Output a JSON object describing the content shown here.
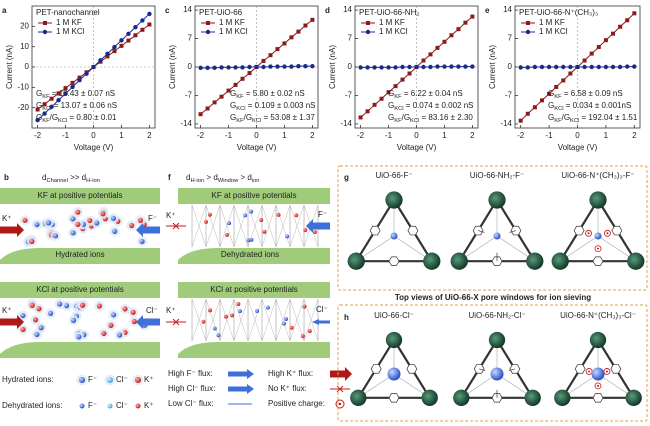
{
  "chart_data": [
    {
      "type": "line",
      "panel": "a",
      "title": "PET-nanochannel",
      "xlabel": "Voltage (V)",
      "ylabel": "Current (nA)",
      "x": [
        -2,
        -1.75,
        -1.5,
        -1.25,
        -1,
        -0.75,
        -0.5,
        -0.25,
        0,
        0.25,
        0.5,
        0.75,
        1,
        1.25,
        1.5,
        1.75,
        2
      ],
      "xlim": [
        -2.2,
        2.2
      ],
      "xticks": [
        -2,
        -1,
        0,
        1,
        2
      ],
      "ylim": [
        -30,
        30
      ],
      "yticks": [
        -20,
        -10,
        0,
        10,
        20
      ],
      "series": [
        {
          "name": "1 M KF",
          "color": "#8b1a1a",
          "marker": "square",
          "values": [
            -20.9,
            -18.3,
            -15.6,
            -13.0,
            -10.4,
            -7.8,
            -5.2,
            -2.6,
            0,
            2.6,
            5.2,
            7.8,
            10.4,
            13.0,
            15.6,
            18.3,
            20.9
          ]
        },
        {
          "name": "1 M KCl",
          "color": "#1a2a8b",
          "marker": "circle",
          "values": [
            -26.1,
            -22.9,
            -19.6,
            -16.3,
            -13.1,
            -9.8,
            -6.5,
            -3.3,
            0,
            3.3,
            6.5,
            9.8,
            13.1,
            16.3,
            19.6,
            22.9,
            26.1
          ]
        }
      ],
      "annotations": [
        [
          "G",
          "KF",
          " = 10.43 ± 0.07 nS"
        ],
        [
          "G",
          "KCl",
          " = 13.07 ± 0.06 nS"
        ],
        [
          "G",
          "KF",
          "/G",
          "KCl",
          " = 0.80 ± 0.01"
        ]
      ]
    },
    {
      "type": "line",
      "panel": "c",
      "title": "PET-UiO-66",
      "xlabel": "Voltage (V)",
      "ylabel": "Current (nA)",
      "x": [
        -2,
        -1.75,
        -1.5,
        -1.25,
        -1,
        -0.75,
        -0.5,
        -0.25,
        0,
        0.25,
        0.5,
        0.75,
        1,
        1.25,
        1.5,
        1.75,
        2
      ],
      "xlim": [
        -2.2,
        2.2
      ],
      "xticks": [
        -2,
        -1,
        0,
        1,
        2
      ],
      "ylim": [
        -15,
        15
      ],
      "yticks": [
        -14,
        -7,
        0,
        7,
        14
      ],
      "series": [
        {
          "name": "1 M KF",
          "color": "#8b1a1a",
          "marker": "square",
          "values": [
            -11.6,
            -10.2,
            -8.7,
            -7.3,
            -5.8,
            -4.4,
            -2.9,
            -1.5,
            0,
            1.5,
            2.9,
            4.4,
            5.8,
            7.3,
            8.7,
            10.2,
            11.6
          ]
        },
        {
          "name": "1 M KCl",
          "color": "#1a2a8b",
          "marker": "circle",
          "values": [
            -0.2,
            -0.2,
            -0.2,
            -0.1,
            -0.1,
            -0.1,
            -0.1,
            0,
            0,
            0,
            0.1,
            0.1,
            0.1,
            0.1,
            0.2,
            0.2,
            0.2
          ]
        }
      ],
      "annotations": [
        [
          "G",
          "KF",
          " = 5.80 ± 0.02 nS"
        ],
        [
          "G",
          "KCl",
          " = 0.109 ± 0.003 nS"
        ],
        [
          "G",
          "KF",
          "/G",
          "KCl",
          " = 53.08 ± 1.37"
        ]
      ]
    },
    {
      "type": "line",
      "panel": "d",
      "title": "PET-UiO-66-NH₂",
      "xlabel": "Voltage (V)",
      "ylabel": "Current (nA)",
      "x": [
        -2,
        -1.75,
        -1.5,
        -1.25,
        -1,
        -0.75,
        -0.5,
        -0.25,
        0,
        0.25,
        0.5,
        0.75,
        1,
        1.25,
        1.5,
        1.75,
        2
      ],
      "xlim": [
        -2.2,
        2.2
      ],
      "xticks": [
        -2,
        -1,
        0,
        1,
        2
      ],
      "ylim": [
        -15,
        15
      ],
      "yticks": [
        -14,
        -7,
        0,
        7,
        14
      ],
      "series": [
        {
          "name": "1 M KF",
          "color": "#8b1a1a",
          "marker": "square",
          "values": [
            -12.4,
            -10.9,
            -9.3,
            -7.8,
            -6.2,
            -4.7,
            -3.1,
            -1.6,
            0,
            1.6,
            3.1,
            4.7,
            6.2,
            7.8,
            9.3,
            10.9,
            12.4
          ]
        },
        {
          "name": "1 M KCl",
          "color": "#1a2a8b",
          "marker": "circle",
          "values": [
            -0.1,
            -0.1,
            -0.1,
            -0.1,
            -0.1,
            -0.1,
            0,
            0,
            0,
            0,
            0,
            0.1,
            0.1,
            0.1,
            0.1,
            0.1,
            0.1
          ]
        }
      ],
      "annotations": [
        [
          "G",
          "KF",
          " = 6.22 ± 0.04 nS"
        ],
        [
          "G",
          "KCl",
          " = 0.074 ± 0.002 nS"
        ],
        [
          "G",
          "KF",
          "/G",
          "KCl",
          " = 83.16 ± 2.30"
        ]
      ]
    },
    {
      "type": "line",
      "panel": "e",
      "title": "PET-UiO-66-N⁺(CH₃)₃",
      "xlabel": "Voltage (V)",
      "ylabel": "Current (nA)",
      "x": [
        -2,
        -1.75,
        -1.5,
        -1.25,
        -1,
        -0.75,
        -0.5,
        -0.25,
        0,
        0.25,
        0.5,
        0.75,
        1,
        1.25,
        1.5,
        1.75,
        2
      ],
      "xlim": [
        -2.2,
        2.2
      ],
      "xticks": [
        -2,
        -1,
        0,
        1,
        2
      ],
      "ylim": [
        -15,
        15
      ],
      "yticks": [
        -14,
        -7,
        0,
        7,
        14
      ],
      "series": [
        {
          "name": "1 M KF",
          "color": "#8b1a1a",
          "marker": "square",
          "values": [
            -13.2,
            -11.5,
            -9.9,
            -8.2,
            -6.6,
            -4.9,
            -3.3,
            -1.6,
            0,
            1.6,
            3.3,
            4.9,
            6.6,
            8.2,
            9.9,
            11.5,
            13.2
          ]
        },
        {
          "name": "1 M KCl",
          "color": "#1a2a8b",
          "marker": "circle",
          "values": [
            -0.1,
            -0.1,
            0,
            0,
            0,
            0,
            0,
            0,
            0,
            0,
            0,
            0,
            0,
            0,
            0,
            0.1,
            0.1
          ]
        }
      ],
      "annotations": [
        [
          "G",
          "KF",
          " = 6.58 ± 0.09 nS"
        ],
        [
          "G",
          "KCl",
          " = 0.034 ± 0.001nS"
        ],
        [
          "G",
          "KF",
          "/G",
          "KCl",
          " = 192.04 ± 1.51"
        ]
      ]
    }
  ],
  "diagram": {
    "b": {
      "label": "b",
      "condition": [
        "d",
        "Channel",
        " >> d",
        "H-ion"
      ],
      "kf": "KF at positive potentials",
      "kcl": "KCl at positive potentials",
      "ions": [
        "K⁺",
        "F⁻",
        "K⁺",
        "Cl⁻"
      ],
      "note": "Hydrated ions"
    },
    "f": {
      "label": "f",
      "condition": [
        "d",
        "H-ion",
        " > d",
        "Window",
        " > d",
        "ion"
      ],
      "kf": "KF at positive potentials",
      "kcl": "KCl at positive potentials",
      "ions": [
        "K⁺",
        "F⁻",
        "K⁺",
        "Cl⁻"
      ],
      "note": "Dehydrated ions"
    },
    "hydrated": {
      "title": "Hydrated ions:",
      "ions": [
        "F⁻",
        "Cl⁻",
        "K⁺"
      ]
    },
    "dehydrated": {
      "title": "Dehydrated ions:",
      "ions": [
        "F⁻",
        "Cl⁻",
        "K⁺"
      ]
    },
    "flux": [
      "High F⁻ flux:",
      "High Cl⁻ flux:",
      "Low Cl⁻ flux:",
      "High K⁺ flux:",
      "No K⁺ flux:",
      "Positive charge:"
    ],
    "g": {
      "label": "g",
      "structures": [
        "UiO-66-F⁻",
        "UiO-66-NH₂-F⁻",
        "UiO-66-N⁺(CH₃)₃-F⁻"
      ]
    },
    "caption": "Top views of UiO-66-X pore windows for ion sieving",
    "h": {
      "label": "h",
      "structures": [
        "UiO-66-Cl⁻",
        "UiO-66-NH₂-Cl⁻",
        "UiO-66-N⁺(CH₃)₃-Cl⁻"
      ]
    }
  }
}
